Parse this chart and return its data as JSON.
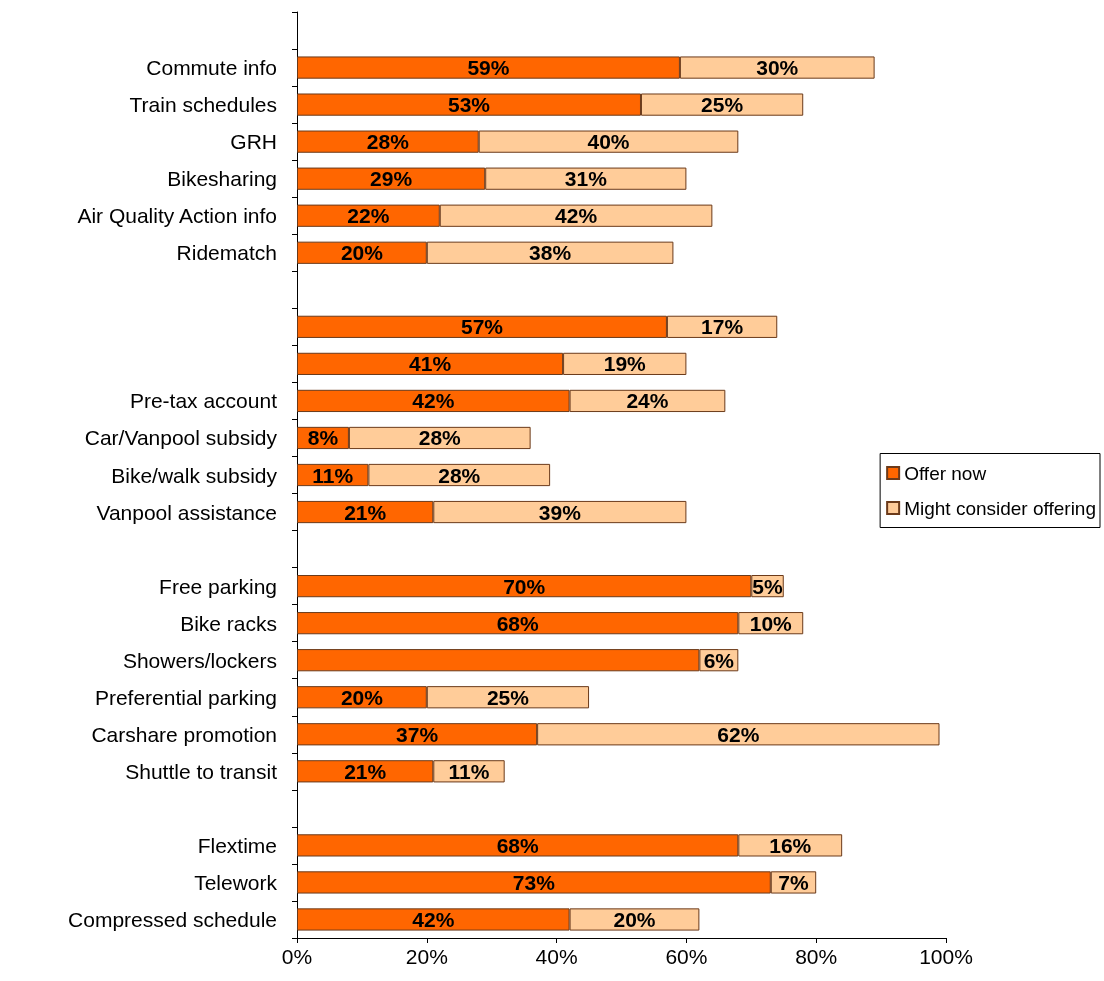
{
  "chart_data": {
    "type": "bar",
    "orientation": "horizontal",
    "stacked": true,
    "categories": [
      null,
      "Commute info",
      "Train schedules",
      "GRH",
      "Bikesharing",
      "Air Quality Action info",
      "Ridematch",
      null,
      null,
      null,
      "Pre-tax account",
      "Car/Vanpool subsidy",
      "Bike/walk subsidy",
      "Vanpool assistance",
      null,
      "Free parking",
      "Bike racks",
      "Showers/lockers",
      "Preferential parking",
      "Carshare promotion",
      "Shuttle to transit",
      null,
      "Flextime",
      "Telework",
      "Compressed schedule"
    ],
    "series": [
      {
        "name": "Offer now",
        "color": "#ff6600",
        "values": [
          null,
          59,
          53,
          28,
          29,
          22,
          20,
          null,
          57,
          41,
          42,
          8,
          11,
          21,
          null,
          70,
          68,
          62,
          20,
          37,
          21,
          null,
          68,
          73,
          42
        ],
        "value_labels": [
          null,
          "59%",
          "53%",
          "28%",
          "29%",
          "22%",
          "20%",
          null,
          "57%",
          "41%",
          "42%",
          "8%",
          "11%",
          "21%",
          null,
          "70%",
          "68%",
          null,
          "20%",
          "37%",
          "21%",
          null,
          "68%",
          "73%",
          "42%"
        ]
      },
      {
        "name": "Might consider offering",
        "color": "#ffcc99",
        "values": [
          null,
          30,
          25,
          40,
          31,
          42,
          38,
          null,
          17,
          19,
          24,
          28,
          28,
          39,
          null,
          5,
          10,
          6,
          25,
          62,
          11,
          null,
          16,
          7,
          20
        ],
        "value_labels": [
          null,
          "30%",
          "25%",
          "40%",
          "31%",
          "42%",
          "38%",
          null,
          "17%",
          "19%",
          "24%",
          "28%",
          "28%",
          "39%",
          null,
          "5%",
          "10%",
          "6%",
          "25%",
          "62%",
          "11%",
          null,
          "16%",
          "7%",
          "20%"
        ]
      }
    ],
    "xlim": [
      0,
      100
    ],
    "xticks": [
      {
        "value": 0,
        "label": "0%"
      },
      {
        "value": 20,
        "label": "20%"
      },
      {
        "value": 40,
        "label": "40%"
      },
      {
        "value": 60,
        "label": "60%"
      },
      {
        "value": 80,
        "label": "80%"
      },
      {
        "value": 100,
        "label": "100%"
      }
    ],
    "legend": "right",
    "grid": false
  }
}
